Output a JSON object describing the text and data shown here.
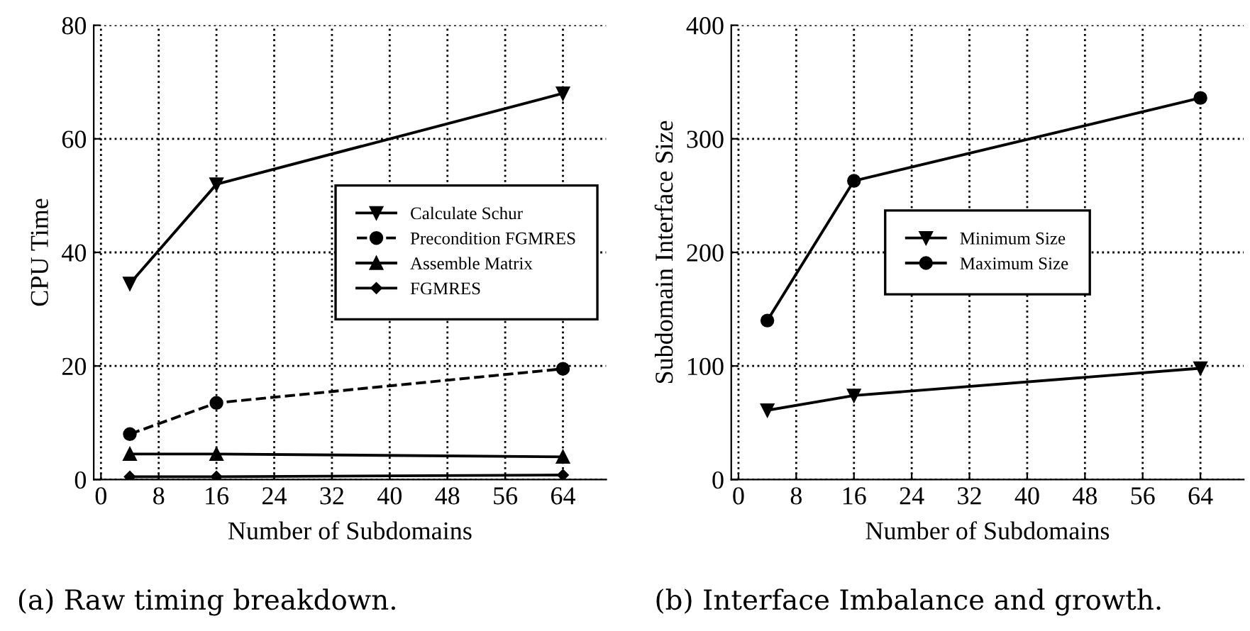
{
  "chart_data": [
    {
      "type": "line",
      "title": "(a) Raw timing breakdown.",
      "xlabel": "Number of Subdomains",
      "ylabel": "CPU Time",
      "x": [
        4,
        16,
        64
      ],
      "series": [
        {
          "name": "Calculate Schur",
          "color": "#000000",
          "marker": "triangle_down",
          "line_style": "solid",
          "values": [
            34.5,
            52,
            68
          ]
        },
        {
          "name": "Precondition FGMRES",
          "color": "#000000",
          "marker": "circle",
          "line_style": "dashed",
          "values": [
            8,
            13.5,
            19.5
          ]
        },
        {
          "name": "Assemble Matrix",
          "color": "#000000",
          "marker": "triangle",
          "line_style": "solid",
          "values": [
            4.5,
            4.5,
            4
          ]
        },
        {
          "name": "FGMRES",
          "color": "#000000",
          "marker": "diamond",
          "line_style": "solid",
          "values": [
            0.5,
            0.5,
            0.8
          ]
        }
      ],
      "xlim": [
        -1,
        70
      ],
      "ylim": [
        0,
        80
      ],
      "xticks": [
        0,
        8,
        16,
        24,
        32,
        40,
        48,
        56,
        64
      ],
      "yticks": [
        0,
        20,
        40,
        60,
        80
      ],
      "grid": true,
      "legend": "center right"
    },
    {
      "type": "line",
      "title": "(b) Interface Imbalance and growth.",
      "xlabel": "Number of Subdomains",
      "ylabel": "Subdomain Interface Size",
      "x": [
        4,
        16,
        64
      ],
      "series": [
        {
          "name": "Minimum Size",
          "color": "#000000",
          "marker": "triangle_down",
          "line_style": "solid",
          "values": [
            61,
            74,
            98
          ]
        },
        {
          "name": "Maximum Size",
          "color": "#000000",
          "marker": "circle",
          "line_style": "solid",
          "values": [
            140,
            263,
            336
          ]
        }
      ],
      "xlim": [
        -1,
        70
      ],
      "ylim": [
        0,
        400
      ],
      "xticks": [
        0,
        8,
        16,
        24,
        32,
        40,
        48,
        56,
        64
      ],
      "yticks": [
        0,
        100,
        200,
        300,
        400
      ],
      "grid": true,
      "legend": "center"
    }
  ]
}
